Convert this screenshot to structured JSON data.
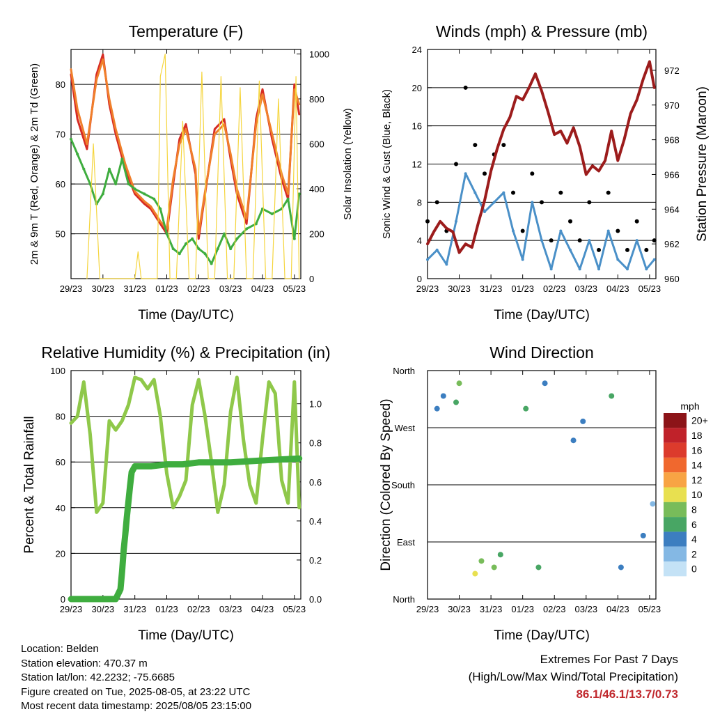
{
  "chart_data": [
    {
      "id": "temperature",
      "type": "line",
      "title": "Temperature (F)",
      "xlabel": "Time (Day/UTC)",
      "ylabel_left": "2m & 9m T (Red, Orange) & 2m Td (Green)",
      "ylabel_right": "Solar Insolation (Yellow)",
      "x_ticks": [
        "29/23",
        "30/23",
        "31/23",
        "01/23",
        "02/23",
        "03/23",
        "04/23",
        "05/23"
      ],
      "x_range": [
        0,
        7.2
      ],
      "ylim_left": [
        41,
        87
      ],
      "yticks_left": [
        50,
        60,
        70,
        80
      ],
      "ylim_right": [
        0,
        1020
      ],
      "yticks_right": [
        0,
        200,
        400,
        600,
        800,
        1000
      ],
      "grid_y": [
        50,
        60,
        70,
        80
      ],
      "series": [
        {
          "name": "2m T",
          "color": "#d62b24",
          "x": [
            0.0,
            0.2,
            0.5,
            0.8,
            1.0,
            1.2,
            1.4,
            1.7,
            2.0,
            2.3,
            2.5,
            2.8,
            3.0,
            3.2,
            3.4,
            3.6,
            3.9,
            4.0,
            4.2,
            4.5,
            4.8,
            5.0,
            5.2,
            5.5,
            5.8,
            6.0,
            6.3,
            6.6,
            6.8,
            7.0,
            7.15
          ],
          "y": [
            82,
            73,
            67,
            82,
            86,
            76,
            70,
            63,
            58,
            56,
            55,
            52,
            50,
            60,
            69,
            72,
            62,
            49,
            58,
            71,
            73,
            65,
            58,
            52,
            73,
            79,
            69,
            61,
            57,
            80,
            74
          ]
        },
        {
          "name": "9m T",
          "color": "#f07f2b",
          "x": [
            0.0,
            0.2,
            0.5,
            0.8,
            1.0,
            1.2,
            1.4,
            1.7,
            2.0,
            2.3,
            2.5,
            2.8,
            3.0,
            3.2,
            3.4,
            3.6,
            3.9,
            4.0,
            4.2,
            4.5,
            4.8,
            5.0,
            5.2,
            5.5,
            5.8,
            6.0,
            6.3,
            6.6,
            6.8,
            7.0,
            7.15
          ],
          "y": [
            83,
            75,
            68,
            81,
            85,
            77,
            71,
            64,
            58.5,
            56.5,
            55.5,
            52.5,
            51,
            61,
            68,
            71,
            63,
            50,
            58.5,
            70,
            72,
            66,
            59,
            53,
            72,
            78,
            70,
            62,
            58,
            79,
            76
          ]
        },
        {
          "name": "2m Td",
          "color": "#3fad3f",
          "x": [
            0.0,
            0.2,
            0.4,
            0.6,
            0.8,
            1.0,
            1.2,
            1.4,
            1.6,
            1.8,
            2.0,
            2.3,
            2.6,
            2.8,
            3.0,
            3.2,
            3.4,
            3.6,
            3.8,
            4.0,
            4.2,
            4.4,
            4.6,
            4.8,
            5.0,
            5.2,
            5.5,
            5.8,
            6.0,
            6.3,
            6.6,
            6.8,
            7.0,
            7.15
          ],
          "y": [
            69,
            66,
            63,
            60,
            56,
            58,
            63,
            60,
            65,
            60,
            59,
            58,
            57,
            55,
            50,
            47,
            46,
            48,
            49,
            47,
            46,
            44,
            47,
            50,
            47,
            49,
            51,
            52,
            55,
            54,
            55,
            57,
            49,
            58
          ]
        },
        {
          "name": "Solar Insolation",
          "color": "#f5d53d",
          "axis": "right",
          "x": [
            0.5,
            0.7,
            0.9,
            1.2,
            1.4,
            1.6,
            1.8,
            1.9,
            2.0,
            2.1,
            2.2,
            2.4,
            2.6,
            2.7,
            2.8,
            2.95,
            3.1,
            3.3,
            3.5,
            3.7,
            3.9,
            4.1,
            4.3,
            4.5,
            4.7,
            4.9,
            5.1,
            5.3,
            5.5,
            5.7,
            5.9,
            6.1,
            6.3,
            6.5,
            6.7,
            6.9,
            7.05,
            7.15
          ],
          "y": [
            0,
            600,
            0,
            0,
            0,
            0,
            0,
            0,
            0,
            120,
            0,
            0,
            0,
            0,
            900,
            1000,
            0,
            0,
            700,
            0,
            0,
            920,
            0,
            0,
            900,
            0,
            0,
            850,
            0,
            0,
            880,
            0,
            0,
            800,
            0,
            0,
            900,
            0
          ]
        }
      ]
    },
    {
      "id": "winds",
      "type": "line",
      "title": "Winds (mph) & Pressure (mb)",
      "xlabel": "Time (Day/UTC)",
      "ylabel_left": "Sonic Wind & Gust (Blue, Black)",
      "ylabel_right": "Station Pressure (Maroon)",
      "x_ticks": [
        "29/23",
        "30/23",
        "31/23",
        "01/23",
        "02/23",
        "03/23",
        "04/23",
        "05/23"
      ],
      "x_range": [
        0,
        7.2
      ],
      "ylim_left": [
        0,
        24
      ],
      "yticks_left": [
        0,
        4,
        8,
        12,
        16,
        20,
        24
      ],
      "ylim_right": [
        960,
        973.2
      ],
      "yticks_right": [
        960,
        962,
        964,
        966,
        968,
        970,
        972
      ],
      "grid_y": [
        4,
        8,
        12,
        16,
        20,
        24
      ],
      "series": [
        {
          "name": "Sonic Wind",
          "color": "#4a90c8",
          "x": [
            0.0,
            0.3,
            0.6,
            0.9,
            1.2,
            1.5,
            1.8,
            2.1,
            2.4,
            2.7,
            3.0,
            3.3,
            3.6,
            3.9,
            4.2,
            4.5,
            4.8,
            5.1,
            5.4,
            5.7,
            6.0,
            6.3,
            6.6,
            6.9,
            7.15
          ],
          "y": [
            2,
            3,
            1.5,
            6,
            11,
            9,
            7,
            8,
            9,
            5,
            2,
            8,
            4,
            1,
            5,
            3,
            1,
            4,
            1,
            5,
            2,
            1,
            4,
            1,
            2
          ]
        },
        {
          "name": "Gust",
          "color": "#000000",
          "x": [
            0.0,
            0.3,
            0.6,
            0.9,
            1.2,
            1.5,
            1.8,
            2.1,
            2.4,
            2.7,
            3.0,
            3.3,
            3.6,
            3.9,
            4.2,
            4.5,
            4.8,
            5.1,
            5.4,
            5.7,
            6.0,
            6.3,
            6.6,
            6.9,
            7.15
          ],
          "y": [
            6,
            8,
            5,
            12,
            20,
            14,
            11,
            13,
            14,
            9,
            5,
            11,
            8,
            4,
            9,
            6,
            4,
            8,
            3,
            9,
            5,
            3,
            6,
            3,
            4
          ]
        },
        {
          "name": "Station Pressure",
          "color": "#9c1c1c",
          "axis": "right",
          "x": [
            0.0,
            0.2,
            0.4,
            0.6,
            0.8,
            1.0,
            1.2,
            1.4,
            1.6,
            1.8,
            2.0,
            2.2,
            2.4,
            2.6,
            2.8,
            3.0,
            3.2,
            3.4,
            3.6,
            3.8,
            4.0,
            4.2,
            4.4,
            4.6,
            4.8,
            5.0,
            5.2,
            5.4,
            5.6,
            5.8,
            6.0,
            6.2,
            6.4,
            6.6,
            6.8,
            7.0,
            7.15
          ],
          "y": [
            962,
            962.7,
            963.3,
            962.9,
            962.7,
            961.5,
            962.0,
            961.8,
            963.2,
            964.5,
            966.2,
            967.5,
            968.6,
            969.3,
            970.5,
            970.3,
            971.0,
            971.8,
            970.8,
            969.6,
            968.3,
            968.5,
            967.8,
            968.7,
            967.6,
            966.0,
            966.5,
            966.2,
            966.8,
            968.5,
            966.8,
            968.0,
            969.5,
            970.3,
            971.5,
            972.5,
            971.0
          ]
        }
      ]
    },
    {
      "id": "humidity",
      "type": "line",
      "title": "Relative Humidity (%) & Precipitation (in)",
      "xlabel": "Time (Day/UTC)",
      "ylabel_left": "Percent & Total Rainfall",
      "x_ticks": [
        "29/23",
        "30/23",
        "31/23",
        "01/23",
        "02/23",
        "03/23",
        "04/23",
        "05/23"
      ],
      "x_range": [
        0,
        7.2
      ],
      "ylim_left": [
        0,
        100
      ],
      "yticks_left": [
        0,
        20,
        40,
        60,
        80,
        100
      ],
      "ylim_right": [
        0,
        1.17
      ],
      "yticks_right": [
        0.0,
        0.2,
        0.4,
        0.6,
        0.8,
        1.0
      ],
      "grid_y": [
        20,
        40,
        60,
        80
      ],
      "series": [
        {
          "name": "Relative Humidity",
          "color": "#8fc84a",
          "x": [
            0.0,
            0.2,
            0.4,
            0.6,
            0.8,
            1.0,
            1.2,
            1.4,
            1.6,
            1.8,
            2.0,
            2.2,
            2.4,
            2.6,
            2.8,
            3.0,
            3.2,
            3.4,
            3.6,
            3.8,
            4.0,
            4.2,
            4.4,
            4.6,
            4.8,
            5.0,
            5.2,
            5.4,
            5.6,
            5.8,
            6.0,
            6.2,
            6.4,
            6.6,
            6.8,
            7.0,
            7.15
          ],
          "y": [
            77,
            80,
            95,
            72,
            38,
            42,
            78,
            74,
            78,
            85,
            97,
            96,
            92,
            96,
            80,
            55,
            40,
            45,
            52,
            85,
            96,
            80,
            60,
            38,
            50,
            82,
            97,
            70,
            50,
            42,
            70,
            95,
            90,
            52,
            42,
            95,
            40
          ]
        },
        {
          "name": "Total Rainfall",
          "color": "#3fad3f",
          "axis": "right",
          "x": [
            0.0,
            1.4,
            1.55,
            1.6,
            1.65,
            1.7,
            1.75,
            1.8,
            1.85,
            1.9,
            2.0,
            2.5,
            3.0,
            3.5,
            4.0,
            5.0,
            6.0,
            7.15
          ],
          "y": [
            0.0,
            0.0,
            0.05,
            0.14,
            0.25,
            0.33,
            0.42,
            0.5,
            0.58,
            0.65,
            0.68,
            0.68,
            0.69,
            0.69,
            0.7,
            0.7,
            0.71,
            0.72
          ]
        }
      ]
    },
    {
      "id": "winddir",
      "type": "scatter",
      "title": "Wind Direction",
      "xlabel": "Time (Day/UTC)",
      "ylabel_left": "Direction (Colored By Speed)",
      "x_ticks": [
        "29/23",
        "30/23",
        "31/23",
        "01/23",
        "02/23",
        "03/23",
        "04/23",
        "05/23"
      ],
      "x_range": [
        0,
        7.2
      ],
      "ylim_left": [
        0,
        360
      ],
      "y_tick_labels": [
        "North",
        "East",
        "South",
        "West",
        "North"
      ],
      "y_tick_values": [
        0,
        90,
        180,
        270,
        360
      ],
      "grid_y": [
        90,
        180,
        270
      ],
      "legend": {
        "title": "mph",
        "placement": "right",
        "labels": [
          "20+",
          "18",
          "16",
          "14",
          "12",
          "10",
          "8",
          "6",
          "4",
          "2",
          "0"
        ],
        "colors": [
          "#8c1418",
          "#c0222a",
          "#dc3b2c",
          "#f0682e",
          "#f8a444",
          "#e8e050",
          "#78bc5a",
          "#48a664",
          "#3c7ec0",
          "#84b8e4",
          "#c4e2f6"
        ]
      },
      "clusters": [
        {
          "x": 0.3,
          "y": 300,
          "speed": 4
        },
        {
          "x": 0.5,
          "y": 320,
          "speed": 3
        },
        {
          "x": 0.9,
          "y": 310,
          "speed": 6
        },
        {
          "x": 1.0,
          "y": 340,
          "speed": 7
        },
        {
          "x": 1.5,
          "y": 40,
          "speed": 10
        },
        {
          "x": 1.7,
          "y": 60,
          "speed": 8
        },
        {
          "x": 2.1,
          "y": 50,
          "speed": 7
        },
        {
          "x": 2.3,
          "y": 70,
          "speed": 6
        },
        {
          "x": 3.1,
          "y": 300,
          "speed": 5
        },
        {
          "x": 3.5,
          "y": 50,
          "speed": 5
        },
        {
          "x": 3.7,
          "y": 340,
          "speed": 4
        },
        {
          "x": 4.6,
          "y": 250,
          "speed": 4
        },
        {
          "x": 4.9,
          "y": 280,
          "speed": 3
        },
        {
          "x": 5.8,
          "y": 320,
          "speed": 5
        },
        {
          "x": 6.1,
          "y": 50,
          "speed": 3
        },
        {
          "x": 6.8,
          "y": 100,
          "speed": 3
        },
        {
          "x": 7.1,
          "y": 150,
          "speed": 2
        }
      ]
    }
  ],
  "info": {
    "location": "Location: Belden",
    "elevation": "Station elevation: 470.37 m",
    "latlon": "Station lat/lon: 42.2232; -75.6685",
    "created": "Figure created on Tue, 2025-08-05, at 23:22 UTC",
    "recent": "Most recent data timestamp: 2025/08/05 23:15:00"
  },
  "extremes": {
    "title": "Extremes For Past 7 Days",
    "subtitle": "(High/Low/Max Wind/Total Precipitation)",
    "values": "86.1/46.1/13.7/0.73"
  }
}
